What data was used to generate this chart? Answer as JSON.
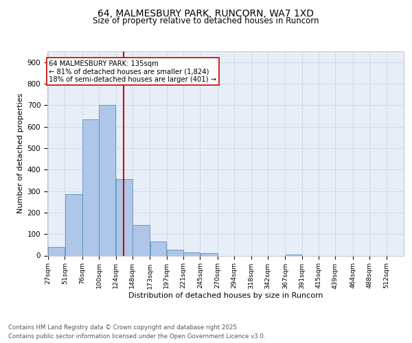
{
  "title1": "64, MALMESBURY PARK, RUNCORN, WA7 1XD",
  "title2": "Size of property relative to detached houses in Runcorn",
  "xlabel": "Distribution of detached houses by size in Runcorn",
  "ylabel": "Number of detached properties",
  "bin_labels": [
    "27sqm",
    "51sqm",
    "76sqm",
    "100sqm",
    "124sqm",
    "148sqm",
    "173sqm",
    "197sqm",
    "221sqm",
    "245sqm",
    "270sqm",
    "294sqm",
    "318sqm",
    "342sqm",
    "367sqm",
    "391sqm",
    "415sqm",
    "439sqm",
    "464sqm",
    "488sqm",
    "512sqm"
  ],
  "bar_heights": [
    40,
    285,
    635,
    700,
    355,
    143,
    65,
    28,
    15,
    10,
    0,
    0,
    0,
    0,
    5,
    0,
    0,
    0,
    0,
    0,
    0
  ],
  "bar_color": "#aec6e8",
  "bar_edge_color": "#5a8fc2",
  "grid_color": "#d0d8e8",
  "background_color": "#e8eef8",
  "vline_color": "#cc0000",
  "vline_x_index": 4,
  "annotation_text": "64 MALMESBURY PARK: 135sqm\n← 81% of detached houses are smaller (1,824)\n18% of semi-detached houses are larger (401) →",
  "annotation_box_color": "#ffffff",
  "annotation_box_edge": "#cc0000",
  "ylim": [
    0,
    950
  ],
  "yticks": [
    0,
    100,
    200,
    300,
    400,
    500,
    600,
    700,
    800,
    900
  ],
  "footnote1": "Contains HM Land Registry data © Crown copyright and database right 2025.",
  "footnote2": "Contains public sector information licensed under the Open Government Licence v3.0.",
  "bin_edges": [
    27,
    51,
    76,
    100,
    124,
    148,
    173,
    197,
    221,
    245,
    270,
    294,
    318,
    342,
    367,
    391,
    415,
    439,
    464,
    488,
    512,
    536
  ],
  "n_bins": 21
}
